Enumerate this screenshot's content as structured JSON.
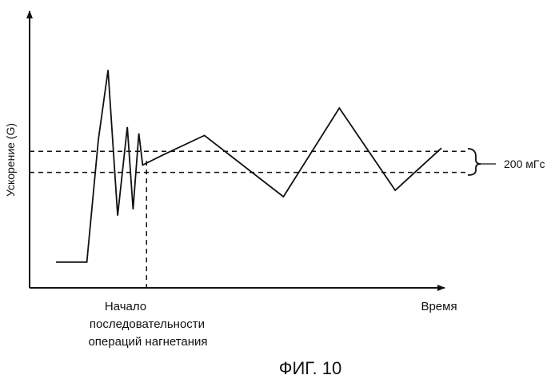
{
  "chart_data": {
    "type": "line",
    "ylabel": "Ускорение (G)",
    "xlabel": "Время",
    "x_marker_label": [
      "Начало",
      "последовательности",
      "операций нагнетания"
    ],
    "band_label": "200 мГс",
    "figure_caption": "ФИГ. 10",
    "series": [
      {
        "points": [
          [
            0.0,
            0.05
          ],
          [
            0.08,
            0.05
          ],
          [
            0.11,
            0.63
          ],
          [
            0.135,
            0.96
          ],
          [
            0.16,
            0.27
          ],
          [
            0.185,
            0.69
          ],
          [
            0.2,
            0.3
          ],
          [
            0.215,
            0.66
          ],
          [
            0.225,
            0.51
          ],
          [
            0.28,
            0.56
          ],
          [
            0.385,
            0.65
          ],
          [
            0.59,
            0.36
          ],
          [
            0.735,
            0.78
          ],
          [
            0.88,
            0.39
          ],
          [
            1.0,
            0.59
          ]
        ]
      }
    ],
    "reference_lines": {
      "upper": 0.575,
      "lower": 0.475
    },
    "marker_x": 0.235,
    "xlim": [
      0,
      1
    ],
    "ylim": [
      0,
      1
    ],
    "ticks": "none",
    "grid": false,
    "legend": false
  },
  "colors": {
    "line": "#111111",
    "axis": "#111111"
  }
}
